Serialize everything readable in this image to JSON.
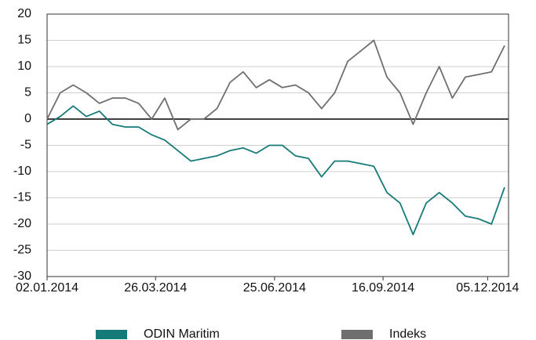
{
  "chart_data": {
    "type": "line",
    "x": [
      "02.01.2014",
      "12.01.2014",
      "22.01.2014",
      "01.02.2014",
      "11.02.2014",
      "21.02.2014",
      "03.03.2014",
      "13.03.2014",
      "23.03.2014",
      "02.04.2014",
      "12.04.2014",
      "22.04.2014",
      "02.05.2014",
      "12.05.2014",
      "22.05.2014",
      "01.06.2014",
      "11.06.2014",
      "21.06.2014",
      "01.07.2014",
      "11.07.2014",
      "21.07.2014",
      "31.07.2014",
      "10.08.2014",
      "20.08.2014",
      "30.08.2014",
      "09.09.2014",
      "19.09.2014",
      "29.09.2014",
      "09.10.2014",
      "19.10.2014",
      "29.10.2014",
      "08.11.2014",
      "18.11.2014",
      "28.11.2014",
      "08.12.2014",
      "18.12.2014"
    ],
    "series": [
      {
        "name": "ODIN Maritim",
        "color": "#167a78",
        "values": [
          -1,
          0.5,
          2.5,
          0.5,
          1.5,
          -1,
          -1.5,
          -1.5,
          -3,
          -4,
          -6,
          -8,
          -7.5,
          -7,
          -6,
          -5.5,
          -6.5,
          -5,
          -5,
          -7,
          -7.5,
          -11,
          -8,
          -8,
          -8.5,
          -9,
          -14,
          -16,
          -22,
          -16,
          -14,
          -16,
          -18.5,
          -19,
          -20,
          -13
        ]
      },
      {
        "name": "Indeks",
        "color": "#6f6f6f",
        "values": [
          0,
          5,
          6.5,
          5,
          3,
          4,
          4,
          3,
          0,
          4,
          -2,
          0,
          0,
          2,
          7,
          9,
          6,
          7.5,
          6,
          6.5,
          5,
          2,
          5,
          11,
          13,
          15,
          8,
          5,
          -1,
          5,
          10,
          4,
          8,
          8.5,
          9,
          14
        ]
      }
    ],
    "xlim": [
      "02.01.2014",
      "21.12.2014"
    ],
    "xticks": [
      "02.01.2014",
      "26.03.2014",
      "25.06.2014",
      "16.09.2014",
      "05.12.2014"
    ],
    "ylim": [
      -30,
      20
    ],
    "yticks": [
      -30,
      -25,
      -20,
      -15,
      -10,
      -5,
      0,
      5,
      10,
      15,
      20
    ],
    "grid": true,
    "legend": "bottom"
  }
}
